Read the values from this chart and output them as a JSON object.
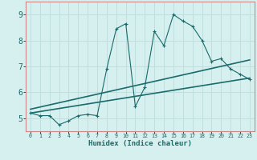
{
  "xlabel": "Humidex (Indice chaleur)",
  "bg_color": "#d6efef",
  "grid_color": "#c0dede",
  "line_color": "#1a6b6b",
  "border_color": "#cc8888",
  "xlim": [
    -0.5,
    23.5
  ],
  "ylim": [
    4.5,
    9.5
  ],
  "xticks": [
    0,
    1,
    2,
    3,
    4,
    5,
    6,
    7,
    8,
    9,
    10,
    11,
    12,
    13,
    14,
    15,
    16,
    17,
    18,
    19,
    20,
    21,
    22,
    23
  ],
  "yticks": [
    5,
    6,
    7,
    8,
    9
  ],
  "main_x": [
    0,
    1,
    2,
    3,
    4,
    5,
    6,
    7,
    8,
    9,
    10,
    11,
    12,
    13,
    14,
    15,
    16,
    17,
    18,
    19,
    20,
    21,
    22,
    23
  ],
  "main_y": [
    5.2,
    5.1,
    5.1,
    4.75,
    4.9,
    5.1,
    5.15,
    5.1,
    6.9,
    8.45,
    8.65,
    5.45,
    6.2,
    8.35,
    7.8,
    9.0,
    8.75,
    8.55,
    8.0,
    7.2,
    7.3,
    6.9,
    6.7,
    6.5
  ],
  "line1_x": [
    0,
    23
  ],
  "line1_y": [
    5.2,
    6.55
  ],
  "line2_x": [
    0,
    23
  ],
  "line2_y": [
    5.35,
    7.25
  ]
}
